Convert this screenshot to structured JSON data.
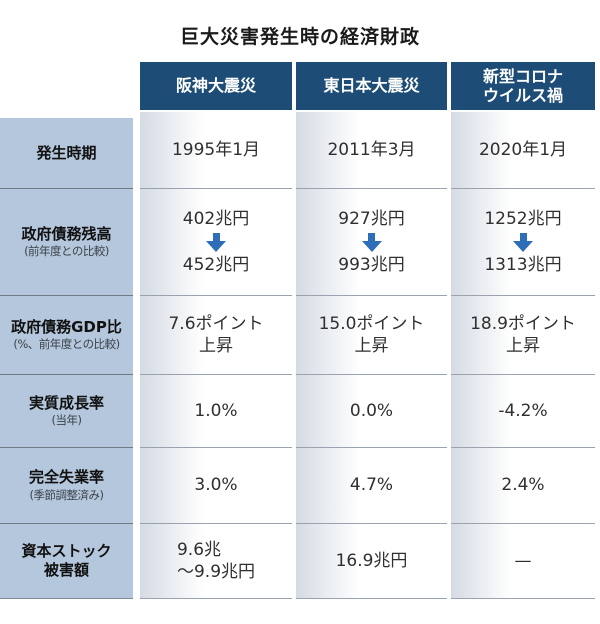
{
  "title": "巨大災害発生時の経済財政",
  "colors": {
    "header-bg": "#1d4d77",
    "label-bg": "#b4c7dc",
    "label-divider": "#6f7b87",
    "data-divider": "#9aa3ad",
    "cell-grad": "#d5dbe4",
    "arrow": "#2e6db8",
    "text": "#2f2f2f"
  },
  "header": {
    "columns": [
      "阪神大震災",
      "東日本大震災",
      "新型コロナ\nウイルス禍"
    ]
  },
  "rows": [
    {
      "label": "発生時期",
      "values": [
        "1995年1月",
        "2011年3月",
        "2020年1月"
      ]
    },
    {
      "label": "政府債務残高",
      "sublabel": "(前年度との比較)",
      "values_before": [
        "402兆円",
        "927兆円",
        "1252兆円"
      ],
      "values_after": [
        "452兆円",
        "993兆円",
        "1313兆円"
      ]
    },
    {
      "label": "政府債務GDP比",
      "sublabel": "(%、前年度との比較)",
      "values": [
        "7.6ポイント\n上昇",
        "15.0ポイント\n上昇",
        "18.9ポイント\n上昇"
      ]
    },
    {
      "label": "実質成長率",
      "sublabel": "(当年)",
      "values": [
        "1.0%",
        "0.0%",
        "-4.2%"
      ]
    },
    {
      "label": "完全失業率",
      "sublabel": "(季節調整済み)",
      "values": [
        "3.0%",
        "4.7%",
        "2.4%"
      ]
    },
    {
      "label": "資本ストック\n被害額",
      "values": [
        "9.6兆\n〜9.9兆円",
        "16.9兆円",
        "—"
      ]
    }
  ],
  "chart_data": {
    "type": "table",
    "title": "巨大災害発生時の経済財政",
    "columns": [
      "阪神大震災",
      "東日本大震災",
      "新型コロナウイルス禍"
    ],
    "rows": [
      {
        "label": "発生時期",
        "values": [
          "1995年1月",
          "2011年3月",
          "2020年1月"
        ]
      },
      {
        "label": "政府債務残高（前年度との比較）",
        "values": [
          "402兆円→452兆円",
          "927兆円→993兆円",
          "1252兆円→1313兆円"
        ]
      },
      {
        "label": "政府債務GDP比（%、前年度との比較）",
        "values": [
          "7.6ポイント上昇",
          "15.0ポイント上昇",
          "18.9ポイント上昇"
        ]
      },
      {
        "label": "実質成長率（当年）",
        "values": [
          "1.0%",
          "0.0%",
          "-4.2%"
        ]
      },
      {
        "label": "完全失業率（季節調整済み）",
        "values": [
          "3.0%",
          "4.7%",
          "2.4%"
        ]
      },
      {
        "label": "資本ストック被害額",
        "values": [
          "9.6兆〜9.9兆円",
          "16.9兆円",
          "—"
        ]
      }
    ]
  }
}
